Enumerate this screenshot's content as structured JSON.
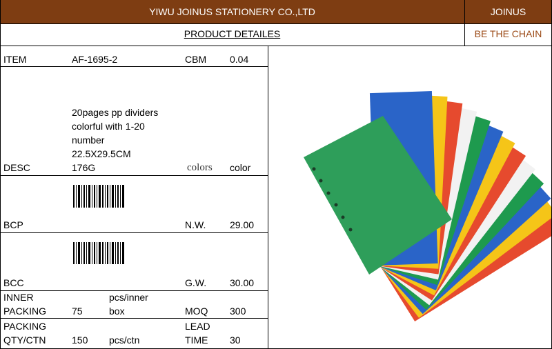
{
  "header": {
    "company": "YIWU JOINUS STATIONERY CO.,LTD",
    "brand": "JOINUS",
    "title": "PRODUCT DETAILES",
    "slogan": "BE THE CHAIN"
  },
  "details": {
    "item": {
      "label": "ITEM",
      "value": "AF-1695-2",
      "cbm_label": "CBM",
      "cbm": "0.04"
    },
    "desc": {
      "label": "DESC",
      "lines": [
        "20pages pp dividers",
        "colorful with 1-20",
        "number",
        "22.5X29.5CM",
        "176G"
      ],
      "colors_label": "colors",
      "colors": "color"
    },
    "bcp": {
      "label": "BCP",
      "nw_label": "N.W.",
      "nw": "29.00"
    },
    "bcc": {
      "label": "BCC",
      "gw_label": "G.W.",
      "gw": "30.00"
    },
    "inner": {
      "label": [
        "INNER",
        "PACKING"
      ],
      "value": "75",
      "unit": [
        "pcs/inner",
        "box"
      ],
      "moq_label": "MOQ",
      "moq": "300"
    },
    "packing": {
      "label": [
        "PACKING",
        "QTY/CTN"
      ],
      "value": "150",
      "unit": "pcs/ctn",
      "lead_label": [
        "LEAD",
        "TIME"
      ],
      "lead": "30"
    }
  }
}
